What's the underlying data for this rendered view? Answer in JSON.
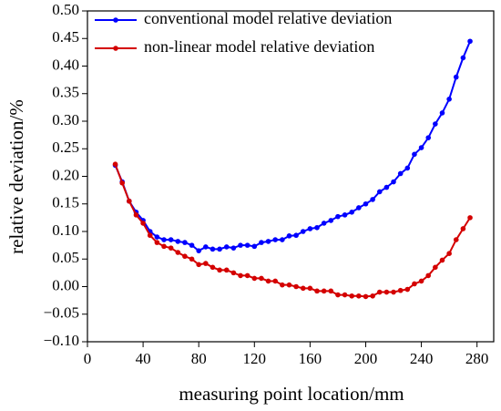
{
  "chart_data": {
    "type": "line",
    "x_label": "measuring point location/mm",
    "y_label": "relative deviation/%",
    "x": [
      20,
      25,
      30,
      35,
      40,
      45,
      50,
      55,
      60,
      65,
      70,
      75,
      80,
      85,
      90,
      95,
      100,
      105,
      110,
      115,
      120,
      125,
      130,
      135,
      140,
      145,
      150,
      155,
      160,
      165,
      170,
      175,
      180,
      185,
      190,
      195,
      200,
      205,
      210,
      215,
      220,
      225,
      230,
      235,
      240,
      245,
      250,
      255,
      260,
      265,
      270,
      275
    ],
    "series": [
      {
        "name": "conventional model relative deviation",
        "color": "#0000ff",
        "values": [
          0.22,
          0.19,
          0.155,
          0.135,
          0.12,
          0.1,
          0.09,
          0.085,
          0.085,
          0.082,
          0.08,
          0.075,
          0.065,
          0.072,
          0.068,
          0.068,
          0.072,
          0.07,
          0.075,
          0.075,
          0.073,
          0.08,
          0.082,
          0.085,
          0.085,
          0.092,
          0.093,
          0.1,
          0.105,
          0.107,
          0.115,
          0.12,
          0.127,
          0.13,
          0.135,
          0.143,
          0.15,
          0.158,
          0.172,
          0.18,
          0.19,
          0.205,
          0.215,
          0.24,
          0.252,
          0.27,
          0.295,
          0.315,
          0.34,
          0.38,
          0.415,
          0.445
        ]
      },
      {
        "name": "non-linear model relative deviation",
        "color": "#d40000",
        "values": [
          0.222,
          0.188,
          0.155,
          0.13,
          0.115,
          0.093,
          0.08,
          0.073,
          0.07,
          0.062,
          0.055,
          0.05,
          0.04,
          0.042,
          0.035,
          0.03,
          0.03,
          0.025,
          0.02,
          0.02,
          0.015,
          0.015,
          0.01,
          0.01,
          0.003,
          0.003,
          0.0,
          -0.003,
          -0.003,
          -0.008,
          -0.008,
          -0.008,
          -0.015,
          -0.015,
          -0.017,
          -0.017,
          -0.018,
          -0.017,
          -0.01,
          -0.01,
          -0.01,
          -0.007,
          -0.005,
          0.005,
          0.01,
          0.02,
          0.035,
          0.048,
          0.06,
          0.085,
          0.105,
          0.125
        ]
      }
    ],
    "xlim": [
      0,
      292
    ],
    "xticks": [
      0,
      40,
      80,
      120,
      160,
      200,
      240,
      280
    ],
    "ylim": [
      -0.1,
      0.5
    ],
    "yticks": [
      {
        "value": -0.1,
        "label": "−0.10"
      },
      {
        "value": -0.05,
        "label": "−0.05"
      },
      {
        "value": 0,
        "label": "0.00"
      },
      0.05,
      {
        "value": 0.1,
        "label": "0.10"
      },
      0.15,
      {
        "value": 0.2,
        "label": "0.20"
      },
      0.25,
      {
        "value": 0.3,
        "label": "0.30"
      },
      0.35,
      {
        "value": 0.4,
        "label": "0.40"
      },
      0.45,
      {
        "value": 0.5,
        "label": "0.50"
      }
    ],
    "legend": "upper left",
    "grid": false
  }
}
